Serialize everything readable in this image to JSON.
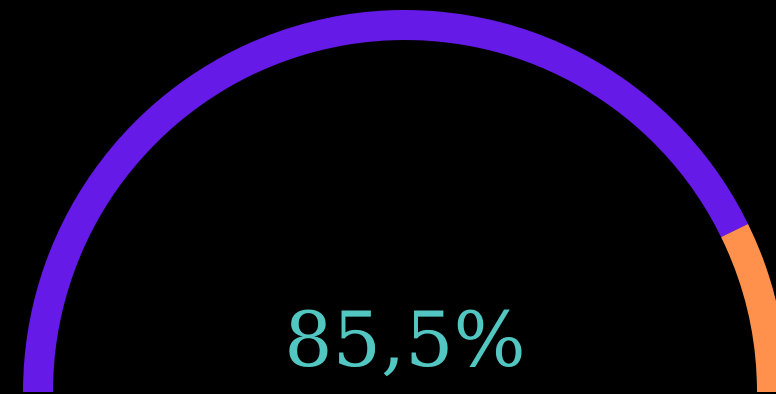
{
  "chart_data": {
    "type": "gauge",
    "value": 85.5,
    "min": 0,
    "max": 100,
    "value_label": "85,5%",
    "colors": {
      "filled": "#651ae8",
      "remainder": "#ff914d",
      "label": "#52c7c2",
      "background": "#000000"
    }
  }
}
